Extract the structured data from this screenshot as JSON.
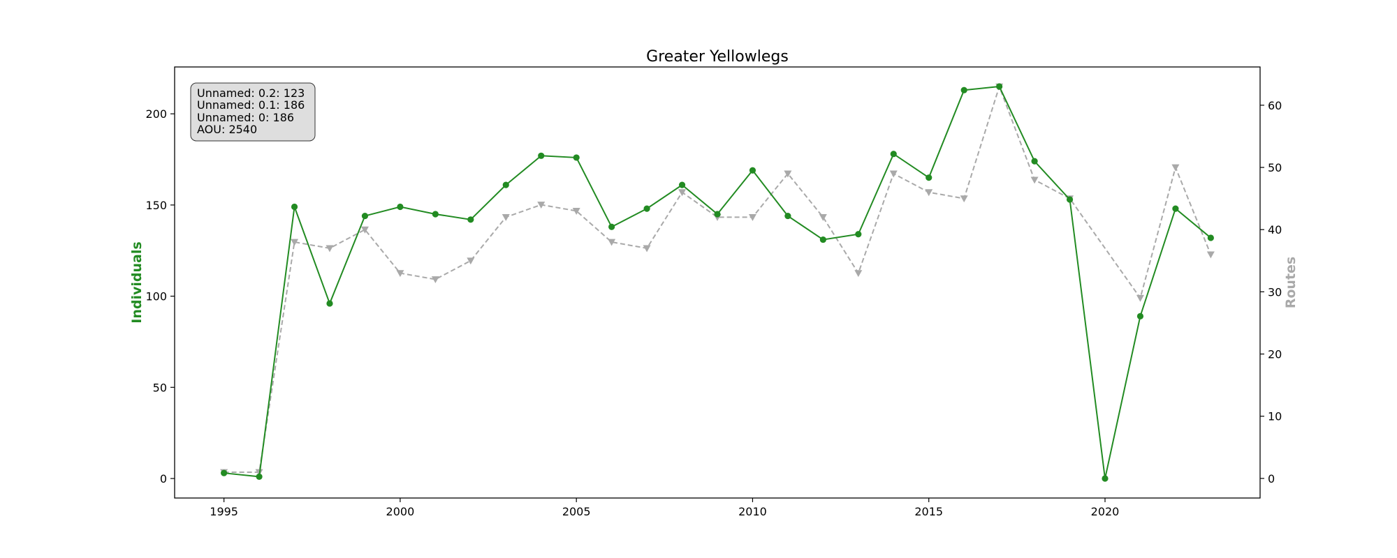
{
  "chart_data": {
    "type": "line",
    "title": "Greater Yellowlegs",
    "xlabel": "",
    "ylabel": "Individuals",
    "ylabel_right": "Routes",
    "xlim": [
      1993.6,
      2024.4
    ],
    "ylim": [
      -10.7,
      225.7
    ],
    "ylim_right": [
      -3.15,
      66.15
    ],
    "x_ticks": [
      1995,
      2000,
      2005,
      2010,
      2015,
      2020
    ],
    "y_ticks": [
      0,
      50,
      100,
      150,
      200
    ],
    "y_ticks_right": [
      0,
      10,
      20,
      30,
      40,
      50,
      60
    ],
    "grid": false,
    "colors": {
      "individuals": "#228b22",
      "routes": "#a9a9a9"
    },
    "series": [
      {
        "key": "individuals",
        "axis": "left",
        "marker": "circle",
        "linestyle": "solid",
        "x": [
          1995,
          1996,
          1997,
          1998,
          1999,
          2000,
          2001,
          2002,
          2003,
          2004,
          2005,
          2006,
          2007,
          2008,
          2009,
          2010,
          2011,
          2012,
          2013,
          2014,
          2015,
          2016,
          2017,
          2018,
          2019,
          2020,
          2021,
          2022,
          2023
        ],
        "values": [
          3,
          1,
          149,
          96,
          144,
          149,
          145,
          142,
          161,
          177,
          176,
          138,
          148,
          161,
          145,
          169,
          144,
          131,
          134,
          178,
          165,
          213,
          215,
          174,
          153,
          0,
          89,
          148,
          132
        ]
      },
      {
        "key": "routes",
        "axis": "right",
        "marker": "triangle-down",
        "linestyle": "dashed",
        "x": [
          1995,
          1996,
          1997,
          1998,
          1999,
          2000,
          2001,
          2002,
          2003,
          2004,
          2005,
          2006,
          2007,
          2008,
          2009,
          2010,
          2011,
          2012,
          2013,
          2014,
          2015,
          2016,
          2017,
          2018,
          2019,
          2021,
          2022,
          2023
        ],
        "values": [
          1,
          1,
          38,
          37,
          40,
          33,
          32,
          35,
          42,
          44,
          43,
          38,
          37,
          46,
          42,
          42,
          49,
          42,
          33,
          49,
          46,
          45,
          63,
          48,
          45,
          29,
          50,
          36
        ]
      }
    ],
    "annotation": {
      "placement": "top-left",
      "lines": [
        "Unnamed: 0.2: 123",
        "Unnamed: 0.1: 186",
        "Unnamed: 0: 186",
        "AOU: 2540"
      ]
    }
  }
}
